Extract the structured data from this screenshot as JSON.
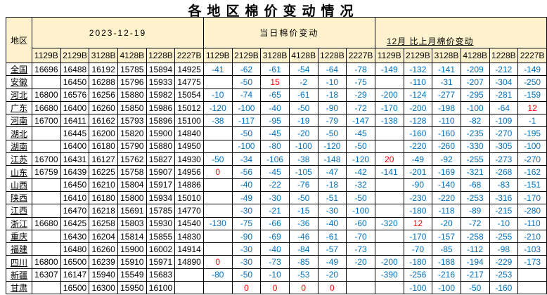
{
  "title": "各地区棉价变动情况",
  "colors": {
    "header_bg": "#FFF2CC",
    "negative_change": "#0070C0",
    "positive_change": "#FF0000",
    "price_text": "#000000",
    "border": "#000000"
  },
  "table": {
    "region_header": "地区",
    "sections": [
      {
        "label": "2023-12-19"
      },
      {
        "label": "当日棉价变动"
      },
      {
        "label": "12月 比上月棉价变动"
      }
    ],
    "grade_codes": [
      "1129B",
      "2129B",
      "3128B",
      "4128B",
      "1228B",
      "2227B"
    ],
    "rows": [
      {
        "region": "全国",
        "prices": [
          16696,
          16488,
          16192,
          15785,
          15894,
          14925
        ],
        "daily": [
          -41,
          -62,
          -61,
          -54,
          -64,
          -78
        ],
        "monthly": [
          -149,
          -132,
          -141,
          -209,
          -212,
          -149
        ]
      },
      {
        "region": "安徽",
        "prices": [
          "",
          16450,
          16288,
          15796,
          15933,
          14775
        ],
        "daily": [
          "",
          -50,
          15,
          -2,
          -10,
          -75
        ],
        "monthly": [
          "",
          -110,
          -31,
          -207,
          -304,
          -250
        ]
      },
      {
        "region": "河北",
        "prices": [
          16800,
          16576,
          16256,
          15880,
          15982,
          15054
        ],
        "daily": [
          -10,
          -74,
          -65,
          -61,
          -18,
          -29
        ],
        "monthly": [
          -200,
          -124,
          -277,
          -295,
          -281,
          -159
        ]
      },
      {
        "region": "广东",
        "prices": [
          16680,
          16400,
          16260,
          15850,
          15986,
          15012
        ],
        "daily": [
          -120,
          -100,
          -40,
          -50,
          -90,
          -72
        ],
        "monthly": [
          -170,
          -200,
          -198,
          -100,
          -64,
          12
        ]
      },
      {
        "region": "河南",
        "prices": [
          16700,
          16411,
          16162,
          15793,
          15896,
          15100
        ],
        "daily": [
          -38,
          -117,
          -95,
          -19,
          -79,
          -147
        ],
        "monthly": [
          -138,
          -128,
          -110,
          -82,
          -109,
          -1
        ]
      },
      {
        "region": "湖北",
        "prices": [
          "",
          16445,
          16200,
          15820,
          15900,
          14840
        ],
        "daily": [
          "",
          -50,
          -45,
          -20,
          -50,
          -45
        ],
        "monthly": [
          "",
          -160,
          -160,
          -235,
          -270,
          -195
        ]
      },
      {
        "region": "湖南",
        "prices": [
          "",
          16400,
          16180,
          15790,
          15880,
          14950
        ],
        "daily": [
          "",
          -100,
          -80,
          -100,
          -120,
          -50
        ],
        "monthly": [
          "",
          -220,
          -260,
          -330,
          -305,
          -100
        ]
      },
      {
        "region": "江苏",
        "prices": [
          16700,
          16431,
          16127,
          15762,
          15827,
          14930
        ],
        "daily": [
          -50,
          -34,
          -106,
          -38,
          -148,
          -120
        ],
        "monthly": [
          20,
          -49,
          -92,
          -255,
          -273,
          -270
        ]
      },
      {
        "region": "山东",
        "prices": [
          16759,
          16439,
          16225,
          15758,
          15907,
          14956
        ],
        "daily": [
          0,
          -56,
          -45,
          -105,
          -47,
          -42
        ],
        "monthly": [
          -141,
          -201,
          -169,
          -321,
          -268,
          -162
        ]
      },
      {
        "region": "山西",
        "prices": [
          "",
          16450,
          16210,
          15804,
          15917,
          14886
        ],
        "daily": [
          "",
          -40,
          -22,
          -76,
          -18,
          -32
        ],
        "monthly": [
          "",
          -90,
          -140,
          -68,
          -83,
          -151
        ]
      },
      {
        "region": "陕西",
        "prices": [
          "",
          16410,
          16180,
          15800,
          15934,
          15010
        ],
        "daily": [
          "",
          -49,
          -30,
          -50,
          -51,
          -50
        ],
        "monthly": [
          "",
          -230,
          -220,
          -253,
          -316,
          -170
        ]
      },
      {
        "region": "江西",
        "prices": [
          "",
          16470,
          16218,
          15691,
          15785,
          14770
        ],
        "daily": [
          "",
          -30,
          -21,
          -15,
          -30,
          -100
        ],
        "monthly": [
          "",
          -180,
          -118,
          -89,
          -215,
          -280
        ]
      },
      {
        "region": "浙江",
        "prices": [
          16680,
          16425,
          16258,
          15803,
          15930,
          14540
        ],
        "daily": [
          -130,
          -75,
          -66,
          -36,
          -40,
          -60
        ],
        "monthly": [
          -320,
          12,
          -20,
          -72,
          -10,
          -110
        ]
      },
      {
        "region": "重庆",
        "prices": [
          "",
          16430,
          16204,
          15814,
          15855,
          14830
        ],
        "daily": [
          "",
          -90,
          -69,
          -46,
          -61,
          -70
        ],
        "monthly": [
          "",
          -170,
          -157,
          -258,
          -255,
          -210
        ]
      },
      {
        "region": "福建",
        "prices": [
          "",
          16480,
          16260,
          15900,
          16002,
          14914
        ],
        "daily": [
          "",
          -30,
          -40,
          -84,
          -57,
          -73
        ],
        "monthly": [
          "",
          -70,
          -85,
          -112,
          -98,
          -103
        ]
      },
      {
        "region": "四川",
        "prices": [
          16800,
          16500,
          16239,
          15910,
          15971,
          14890
        ],
        "daily": [
          0,
          -30,
          -73,
          -85,
          -49,
          -20
        ],
        "monthly": [
          -200,
          -180,
          -188,
          -194,
          -229,
          -173
        ]
      },
      {
        "region": "新疆",
        "prices": [
          16307,
          16147,
          15940,
          15549,
          15683,
          ""
        ],
        "daily": [
          -80,
          -50,
          -10,
          -53,
          -20,
          ""
        ],
        "monthly": [
          -390,
          -256,
          -216,
          -217,
          -253,
          ""
        ]
      },
      {
        "region": "甘肃",
        "prices": [
          "",
          16500,
          16300,
          15950,
          16100,
          ""
        ],
        "daily": [
          "",
          0,
          0,
          0,
          0,
          ""
        ],
        "monthly": [
          "",
          -100,
          -100,
          -50,
          -160,
          ""
        ]
      }
    ]
  }
}
